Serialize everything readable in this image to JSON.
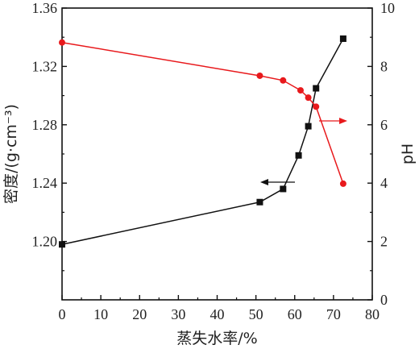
{
  "chart_data": {
    "type": "line",
    "xlabel": "蒸失水率/%",
    "ylabel_left": "密度/(g·cm⁻³)",
    "ylabel_right": "pH",
    "xlim": [
      0,
      80
    ],
    "ylim_left": [
      1.16,
      1.36
    ],
    "ylim_right": [
      0,
      10
    ],
    "x_ticks": [
      "0",
      "10",
      "20",
      "30",
      "40",
      "50",
      "60",
      "70",
      "80"
    ],
    "y_left_ticks": [
      "1.20",
      "1.24",
      "1.28",
      "1.32",
      "1.36"
    ],
    "y_right_ticks": [
      "0",
      "2",
      "4",
      "6",
      "8",
      "10"
    ],
    "grid": false,
    "series": [
      {
        "axis": "left",
        "color": "#111111",
        "marker": "square",
        "arrow": "left",
        "x": [
          0,
          51,
          57,
          61,
          63.5,
          65.5,
          72.5
        ],
        "values": [
          1.198,
          1.227,
          1.236,
          1.259,
          1.279,
          1.305,
          1.339
        ]
      },
      {
        "axis": "right",
        "color": "#e8191c",
        "marker": "circle",
        "arrow": "right",
        "x": [
          0,
          51,
          57,
          61.5,
          63.5,
          65.5,
          72.5
        ],
        "values": [
          8.82,
          7.68,
          7.52,
          7.18,
          6.93,
          6.62,
          3.98
        ]
      }
    ]
  }
}
